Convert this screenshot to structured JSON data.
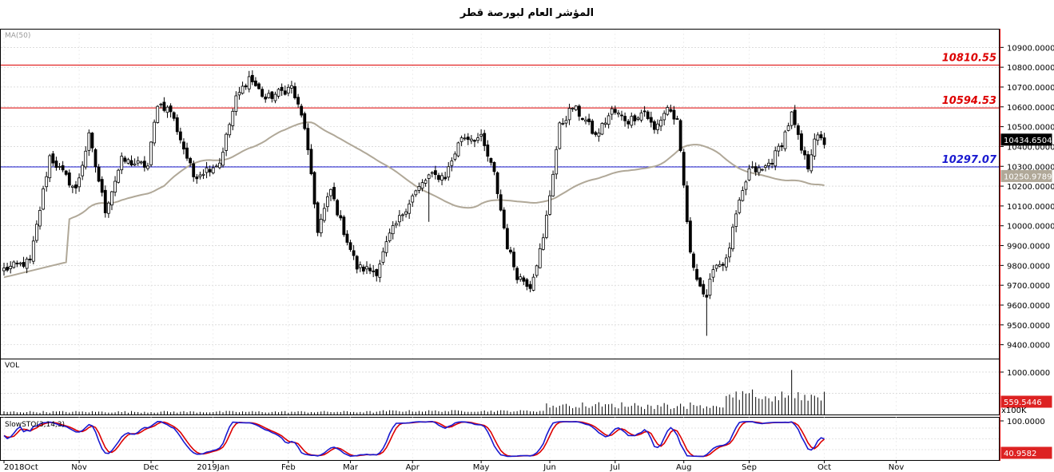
{
  "chart_data": {
    "type": "candlestick",
    "title": "المؤشر العام لبورصة قطر",
    "price_panel": {
      "indicator_label": "MA(50)",
      "ylim": [
        9330,
        10990
      ],
      "y_ticks": [
        9400,
        9500,
        9600,
        9700,
        9800,
        9900,
        10000,
        10100,
        10200,
        10300,
        10400,
        10500,
        10600,
        10700,
        10800,
        10900
      ],
      "y_tick_decimals": 4,
      "last_price_label": "10434.6504",
      "ma_value_label": "10250.9789",
      "horizontal_lines": [
        {
          "value": 10810.55,
          "label": "10810.55",
          "color": "#dd0000"
        },
        {
          "value": 10594.53,
          "label": "10594.53",
          "color": "#dd0000"
        },
        {
          "value": 10297.07,
          "label": "10297.07",
          "color": "#1a1ad0"
        }
      ],
      "anchors": [
        {
          "i": 0,
          "v": 9780
        },
        {
          "i": 8,
          "v": 9820
        },
        {
          "i": 14,
          "v": 10350
        },
        {
          "i": 22,
          "v": 10180
        },
        {
          "i": 26,
          "v": 10450
        },
        {
          "i": 31,
          "v": 10080
        },
        {
          "i": 36,
          "v": 10330
        },
        {
          "i": 44,
          "v": 10300
        },
        {
          "i": 47,
          "v": 10620
        },
        {
          "i": 51,
          "v": 10580
        },
        {
          "i": 58,
          "v": 10250
        },
        {
          "i": 66,
          "v": 10320
        },
        {
          "i": 71,
          "v": 10640
        },
        {
          "i": 75,
          "v": 10750
        },
        {
          "i": 80,
          "v": 10640
        },
        {
          "i": 88,
          "v": 10700
        },
        {
          "i": 92,
          "v": 10500
        },
        {
          "i": 96,
          "v": 9980
        },
        {
          "i": 100,
          "v": 10180
        },
        {
          "i": 103,
          "v": 10020
        },
        {
          "i": 108,
          "v": 9790
        },
        {
          "i": 114,
          "v": 9770
        },
        {
          "i": 118,
          "v": 9950
        },
        {
          "i": 125,
          "v": 10150
        },
        {
          "i": 130,
          "v": 10250
        },
        {
          "i": 135,
          "v": 10250
        },
        {
          "i": 140,
          "v": 10450
        },
        {
          "i": 146,
          "v": 10440
        },
        {
          "i": 150,
          "v": 10260
        },
        {
          "i": 154,
          "v": 9900
        },
        {
          "i": 157,
          "v": 9750
        },
        {
          "i": 161,
          "v": 9700
        },
        {
          "i": 165,
          "v": 9930
        },
        {
          "i": 170,
          "v": 10500
        },
        {
          "i": 174,
          "v": 10600
        },
        {
          "i": 178,
          "v": 10530
        },
        {
          "i": 181,
          "v": 10450
        },
        {
          "i": 186,
          "v": 10580
        },
        {
          "i": 191,
          "v": 10530
        },
        {
          "i": 196,
          "v": 10580
        },
        {
          "i": 199,
          "v": 10480
        },
        {
          "i": 203,
          "v": 10600
        },
        {
          "i": 206,
          "v": 10520
        },
        {
          "i": 208,
          "v": 10200
        },
        {
          "i": 210,
          "v": 9850
        },
        {
          "i": 213,
          "v": 9700
        },
        {
          "i": 215,
          "v": 9620
        },
        {
          "i": 217,
          "v": 9800
        },
        {
          "i": 221,
          "v": 9820
        },
        {
          "i": 224,
          "v": 10050
        },
        {
          "i": 228,
          "v": 10280
        },
        {
          "i": 232,
          "v": 10280
        },
        {
          "i": 235,
          "v": 10330
        },
        {
          "i": 238,
          "v": 10420
        },
        {
          "i": 241,
          "v": 10560
        },
        {
          "i": 244,
          "v": 10380
        },
        {
          "i": 246,
          "v": 10300
        },
        {
          "i": 248,
          "v": 10450
        },
        {
          "i": 251,
          "v": 10420
        }
      ]
    },
    "volume_panel": {
      "label": "VOL",
      "ylim": [
        0,
        1300
      ],
      "y_ticks": [
        1000
      ],
      "value_label": "559.5446",
      "multiplier_label": "x100K"
    },
    "stoch_panel": {
      "label": "SlowSTO(3,14,3)",
      "ylim": [
        0,
        100
      ],
      "y_ticks": [
        100
      ],
      "value_label": "40.9582"
    },
    "x_axis": {
      "labels": [
        {
          "text": "2018Oct",
          "i": 0
        },
        {
          "text": "Nov",
          "i": 23
        },
        {
          "text": "Dec",
          "i": 45
        },
        {
          "text": "2019Jan",
          "i": 64
        },
        {
          "text": "Feb",
          "i": 87
        },
        {
          "text": "Mar",
          "i": 106
        },
        {
          "text": "Apr",
          "i": 125
        },
        {
          "text": "May",
          "i": 146
        },
        {
          "text": "Jun",
          "i": 167
        },
        {
          "text": "Jul",
          "i": 187
        },
        {
          "text": "Aug",
          "i": 208
        },
        {
          "text": "Sep",
          "i": 228
        },
        {
          "text": "Oct",
          "i": 251
        },
        {
          "text": "Nov",
          "i": 273
        }
      ]
    },
    "colors": {
      "up": "#ffffff",
      "down": "#000000",
      "ma": "#b0a898",
      "stoch_k": "#1a1ad0",
      "stoch_d": "#dd0000",
      "value_badge": "#dd2222"
    }
  }
}
